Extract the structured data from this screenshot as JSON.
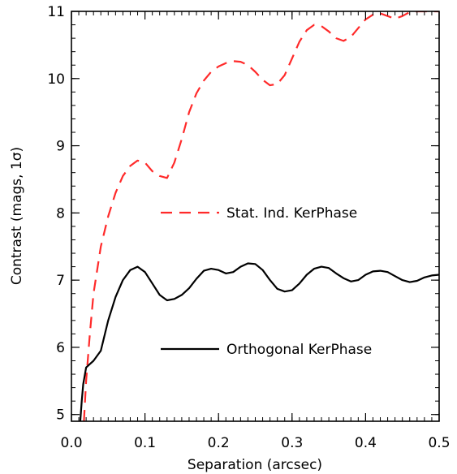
{
  "chart_data": {
    "type": "line",
    "title": "",
    "xlabel": "Separation (arcsec)",
    "ylabel": "Contrast (mags, 1σ)",
    "xlim": [
      0.0,
      0.5
    ],
    "ylim": [
      4.9,
      11.0
    ],
    "x_ticks": [
      0.0,
      0.1,
      0.2,
      0.3,
      0.4,
      0.5
    ],
    "x_tick_labels": [
      "0.0",
      "0.1",
      "0.2",
      "0.3",
      "0.4",
      "0.5"
    ],
    "y_ticks": [
      5,
      6,
      7,
      8,
      9,
      10,
      11
    ],
    "y_tick_labels": [
      "5",
      "6",
      "7",
      "8",
      "9",
      "10",
      "11"
    ],
    "grid": false,
    "legend": "inside, center-right",
    "series": [
      {
        "name": "Stat. Ind. KerPhase",
        "color": "#ff2a2a",
        "style": "dashed",
        "x": [
          0.017,
          0.02,
          0.025,
          0.03,
          0.04,
          0.05,
          0.06,
          0.07,
          0.08,
          0.09,
          0.1,
          0.11,
          0.12,
          0.13,
          0.14,
          0.15,
          0.16,
          0.17,
          0.18,
          0.19,
          0.2,
          0.21,
          0.22,
          0.23,
          0.24,
          0.25,
          0.26,
          0.27,
          0.28,
          0.29,
          0.3,
          0.31,
          0.32,
          0.33,
          0.34,
          0.35,
          0.36,
          0.37,
          0.38,
          0.39,
          0.4,
          0.41,
          0.42,
          0.43,
          0.44,
          0.45,
          0.46,
          0.47,
          0.48,
          0.49,
          0.5
        ],
        "y": [
          4.9,
          5.5,
          6.2,
          6.8,
          7.5,
          7.95,
          8.3,
          8.55,
          8.7,
          8.78,
          8.75,
          8.62,
          8.55,
          8.52,
          8.75,
          9.1,
          9.5,
          9.78,
          9.97,
          10.1,
          10.18,
          10.23,
          10.26,
          10.25,
          10.2,
          10.1,
          9.98,
          9.9,
          9.92,
          10.05,
          10.3,
          10.55,
          10.72,
          10.8,
          10.78,
          10.7,
          10.6,
          10.56,
          10.62,
          10.75,
          10.88,
          10.95,
          10.97,
          10.93,
          10.89,
          10.93,
          10.99,
          11.0,
          11.0,
          11.0,
          11.0
        ]
      },
      {
        "name": "Orthogonal KerPhase",
        "color": "#000000",
        "style": "solid",
        "x": [
          0.012,
          0.014,
          0.016,
          0.02,
          0.025,
          0.03,
          0.04,
          0.05,
          0.06,
          0.07,
          0.08,
          0.09,
          0.1,
          0.11,
          0.12,
          0.13,
          0.14,
          0.15,
          0.16,
          0.17,
          0.18,
          0.19,
          0.2,
          0.21,
          0.22,
          0.23,
          0.24,
          0.25,
          0.26,
          0.27,
          0.28,
          0.29,
          0.3,
          0.31,
          0.32,
          0.33,
          0.34,
          0.35,
          0.36,
          0.37,
          0.38,
          0.39,
          0.4,
          0.41,
          0.42,
          0.43,
          0.44,
          0.45,
          0.46,
          0.47,
          0.48,
          0.49,
          0.5
        ],
        "y": [
          4.9,
          5.2,
          5.45,
          5.7,
          5.75,
          5.8,
          5.95,
          6.4,
          6.75,
          7.0,
          7.15,
          7.2,
          7.12,
          6.95,
          6.78,
          6.7,
          6.72,
          6.78,
          6.88,
          7.02,
          7.14,
          7.17,
          7.15,
          7.1,
          7.12,
          7.2,
          7.25,
          7.24,
          7.15,
          7.0,
          6.87,
          6.83,
          6.85,
          6.95,
          7.08,
          7.17,
          7.2,
          7.18,
          7.1,
          7.03,
          6.98,
          7.0,
          7.08,
          7.13,
          7.14,
          7.12,
          7.06,
          7.0,
          6.97,
          6.99,
          7.04,
          7.07,
          7.08
        ]
      }
    ]
  }
}
